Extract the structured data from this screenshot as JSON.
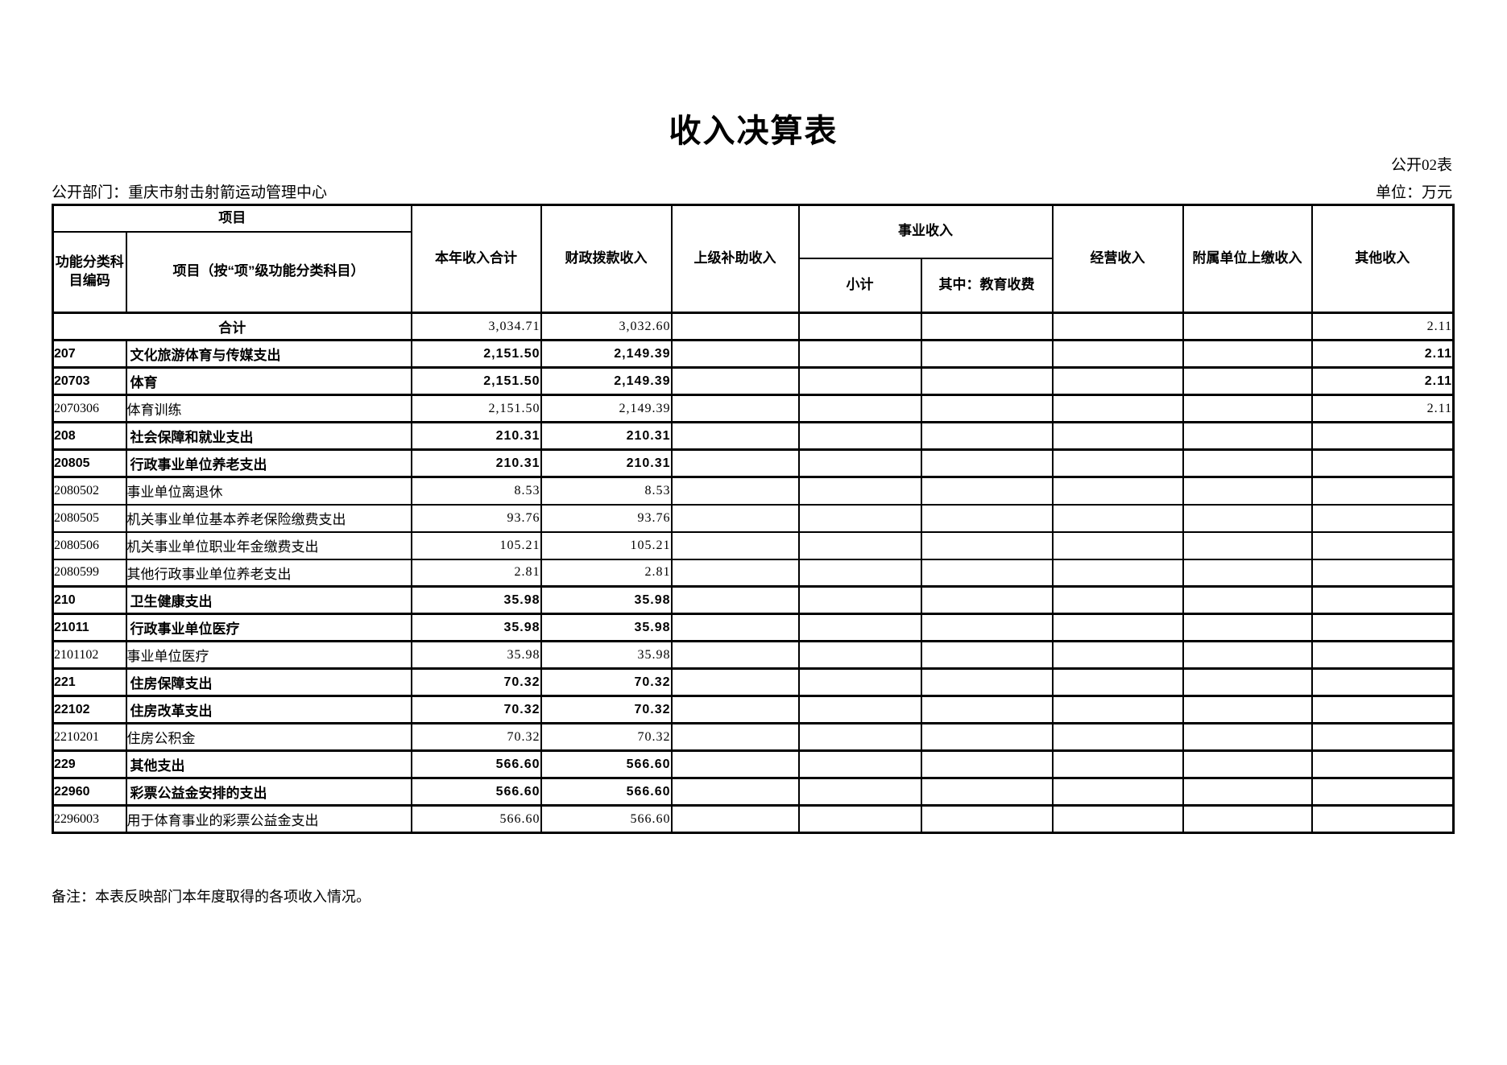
{
  "page": {
    "title": "收入决算表",
    "table_code": "公开02表",
    "department": "公开部门：重庆市射击射箭运动管理中心",
    "unit": "单位：万元",
    "note": "备注：本表反映部门本年度取得的各项收入情况。"
  },
  "colors": {
    "border": "#000000",
    "text": "#000000",
    "background": "#ffffff"
  },
  "table": {
    "header": {
      "project_group": "项目",
      "function_code": "功能分类科目编码",
      "project_item": "项目（按“项”级功能分类科目）",
      "total_income": "本年收入合计",
      "fiscal_income": "财政拨款收入",
      "superior_subsidy": "上级补助收入",
      "business_income": "事业收入",
      "subtotal": "小计",
      "education_fee": "其中：教育收费",
      "operating_income": "经营收入",
      "affiliated_income": "附属单位上缴收入",
      "other_income": "其他收入"
    },
    "rows": [
      {
        "type": "total",
        "code": "",
        "name": "合计",
        "values": [
          "3,034.71",
          "3,032.60",
          "",
          "",
          "",
          "",
          "",
          "2.11"
        ]
      },
      {
        "type": "major",
        "code": "207",
        "name": "文化旅游体育与传媒支出",
        "values": [
          "2,151.50",
          "2,149.39",
          "",
          "",
          "",
          "",
          "",
          "2.11"
        ]
      },
      {
        "type": "major",
        "code": "20703",
        "name": "体育",
        "values": [
          "2,151.50",
          "2,149.39",
          "",
          "",
          "",
          "",
          "",
          "2.11"
        ]
      },
      {
        "type": "detail",
        "code": "2070306",
        "name": "体育训练",
        "values": [
          "2,151.50",
          "2,149.39",
          "",
          "",
          "",
          "",
          "",
          "2.11"
        ]
      },
      {
        "type": "major",
        "code": "208",
        "name": "社会保障和就业支出",
        "values": [
          "210.31",
          "210.31",
          "",
          "",
          "",
          "",
          "",
          ""
        ]
      },
      {
        "type": "major",
        "code": "20805",
        "name": "行政事业单位养老支出",
        "values": [
          "210.31",
          "210.31",
          "",
          "",
          "",
          "",
          "",
          ""
        ]
      },
      {
        "type": "detail",
        "code": "2080502",
        "name": "事业单位离退休",
        "values": [
          "8.53",
          "8.53",
          "",
          "",
          "",
          "",
          "",
          ""
        ]
      },
      {
        "type": "detail",
        "code": "2080505",
        "name": "机关事业单位基本养老保险缴费支出",
        "values": [
          "93.76",
          "93.76",
          "",
          "",
          "",
          "",
          "",
          ""
        ]
      },
      {
        "type": "detail",
        "code": "2080506",
        "name": "机关事业单位职业年金缴费支出",
        "values": [
          "105.21",
          "105.21",
          "",
          "",
          "",
          "",
          "",
          ""
        ]
      },
      {
        "type": "detail",
        "code": "2080599",
        "name": "其他行政事业单位养老支出",
        "values": [
          "2.81",
          "2.81",
          "",
          "",
          "",
          "",
          "",
          ""
        ]
      },
      {
        "type": "major",
        "code": "210",
        "name": "卫生健康支出",
        "values": [
          "35.98",
          "35.98",
          "",
          "",
          "",
          "",
          "",
          ""
        ]
      },
      {
        "type": "major",
        "code": "21011",
        "name": "行政事业单位医疗",
        "values": [
          "35.98",
          "35.98",
          "",
          "",
          "",
          "",
          "",
          ""
        ]
      },
      {
        "type": "detail",
        "code": "2101102",
        "name": "事业单位医疗",
        "values": [
          "35.98",
          "35.98",
          "",
          "",
          "",
          "",
          "",
          ""
        ]
      },
      {
        "type": "major",
        "code": "221",
        "name": "住房保障支出",
        "values": [
          "70.32",
          "70.32",
          "",
          "",
          "",
          "",
          "",
          ""
        ]
      },
      {
        "type": "major",
        "code": "22102",
        "name": "住房改革支出",
        "values": [
          "70.32",
          "70.32",
          "",
          "",
          "",
          "",
          "",
          ""
        ]
      },
      {
        "type": "detail",
        "code": "2210201",
        "name": "住房公积金",
        "values": [
          "70.32",
          "70.32",
          "",
          "",
          "",
          "",
          "",
          ""
        ]
      },
      {
        "type": "major",
        "code": "229",
        "name": "其他支出",
        "values": [
          "566.60",
          "566.60",
          "",
          "",
          "",
          "",
          "",
          ""
        ]
      },
      {
        "type": "major",
        "code": "22960",
        "name": "彩票公益金安排的支出",
        "values": [
          "566.60",
          "566.60",
          "",
          "",
          "",
          "",
          "",
          ""
        ]
      },
      {
        "type": "detail",
        "code": "2296003",
        "name": "用于体育事业的彩票公益金支出",
        "values": [
          "566.60",
          "566.60",
          "",
          "",
          "",
          "",
          "",
          ""
        ]
      }
    ]
  }
}
